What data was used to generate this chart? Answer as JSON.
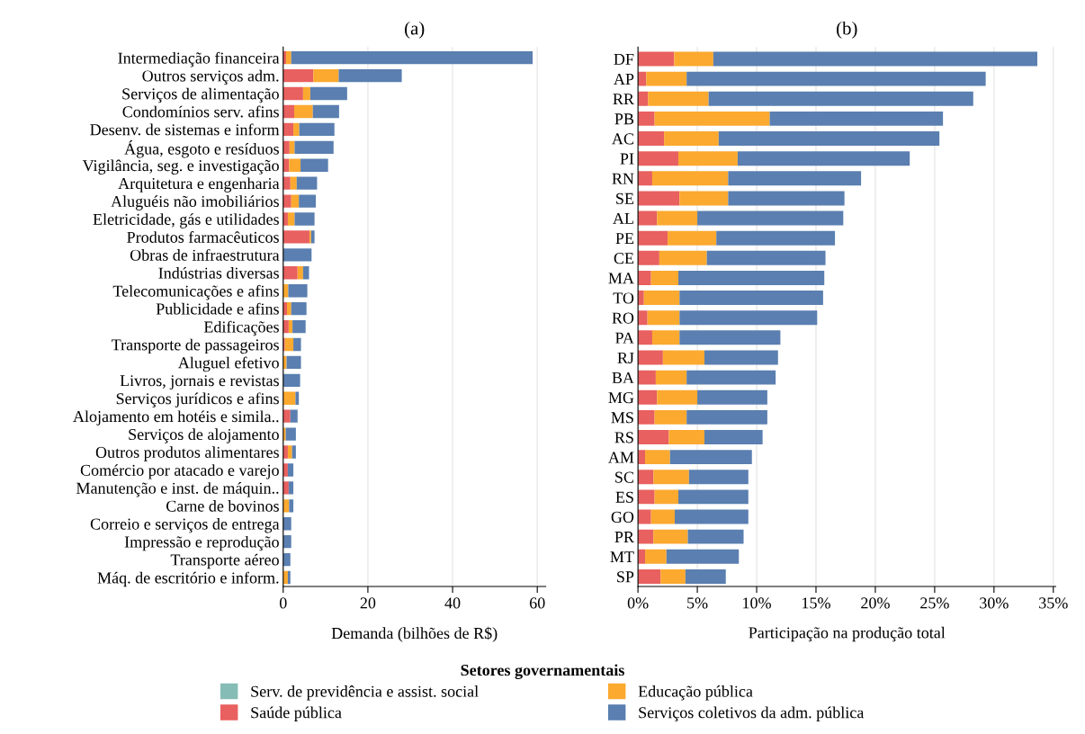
{
  "chart_data": [
    {
      "type": "bar",
      "orientation": "horizontal",
      "stacked": true,
      "title": "(a)",
      "xlabel": "Demanda (bilhões de R$)",
      "grid": "x",
      "legend": "bottom",
      "legend_title": "Setores governamentais",
      "categories": [
        "Intermediação financeira",
        "Outros serviços adm.",
        "Serviços de alimentação",
        "Condomínios serv. afins",
        "Desenv. de sistemas e inform",
        "Água, esgoto e resíduos",
        "Vigilância, seg. e investigação",
        "Arquitetura e engenharia",
        "Aluguéis não imobiliários",
        "Eletricidade, gás e utilidades",
        "Produtos farmacêuticos",
        "Obras de infraestrutura",
        "Indústrias diversas",
        "Telecomunicações e afins",
        "Publicidade e afins",
        "Edificações",
        "Transporte de passageiros",
        "Aluguel efetivo",
        "Livros, jornais e revistas",
        "Serviços jurídicos e afins",
        "Alojamento em hotéis e simila..",
        "Serviços de alojamento",
        "Outros produtos alimentares",
        "Comércio por atacado e varejo",
        "Manutenção e inst. de máquin..",
        "Carne de bovinos",
        "Correio e serviços de entrega",
        "Impressão e reprodução",
        "Transporte aéreo",
        "Máq. de escritório e inform."
      ],
      "xlim": [
        0,
        62
      ],
      "xticks": [
        0,
        20,
        40,
        60
      ],
      "series": [
        {
          "name": "Serv. de previdência e assist. social",
          "color": "#86bcb6",
          "values": [
            0,
            0,
            0,
            0,
            0,
            0,
            0,
            0,
            0,
            0,
            0,
            0,
            0,
            0,
            0,
            0,
            0,
            0,
            0,
            0,
            0,
            0,
            0,
            0,
            0,
            0,
            0,
            0,
            0,
            0
          ]
        },
        {
          "name": "Saúde pública",
          "color": "#e8605f",
          "values": [
            0.7,
            7.1,
            4.7,
            2.6,
            2.4,
            1.5,
            1.4,
            1.7,
            1.9,
            1.1,
            6.2,
            0,
            3.4,
            0,
            0.9,
            1.3,
            0.4,
            0,
            0,
            0,
            1.7,
            0,
            1.1,
            1.1,
            1.3,
            0,
            0,
            0,
            0,
            0
          ]
        },
        {
          "name": "Educação pública",
          "color": "#fba92f",
          "values": [
            1.2,
            6.0,
            1.7,
            4.4,
            1.4,
            1.2,
            2.7,
            1.5,
            1.8,
            1.6,
            0.4,
            0,
            1.3,
            1.2,
            1.0,
            0.9,
            2.0,
            0.8,
            0,
            2.9,
            0,
            0.6,
            1.0,
            0,
            0,
            1.4,
            0,
            0,
            0,
            1.1
          ]
        },
        {
          "name": "Serviços coletivos da adm. pública",
          "color": "#5a7fb0",
          "values": [
            57.0,
            14.9,
            8.7,
            6.2,
            8.3,
            9.2,
            6.5,
            4.8,
            4.0,
            4.7,
            0.8,
            6.7,
            1.4,
            4.5,
            3.6,
            3.1,
            1.8,
            3.4,
            4.0,
            0.8,
            1.7,
            2.4,
            0.9,
            1.3,
            1.1,
            1.0,
            1.9,
            1.9,
            1.7,
            0.6
          ]
        }
      ]
    },
    {
      "type": "bar",
      "orientation": "horizontal",
      "stacked": true,
      "title": "(b)",
      "xlabel": "Participação na produção total",
      "grid": "x",
      "categories": [
        "DF",
        "AP",
        "RR",
        "PB",
        "AC",
        "PI",
        "RN",
        "SE",
        "AL",
        "PE",
        "CE",
        "MA",
        "TO",
        "RO",
        "PA",
        "RJ",
        "BA",
        "MG",
        "MS",
        "RS",
        "AM",
        "SC",
        "ES",
        "GO",
        "PR",
        "MT",
        "SP"
      ],
      "xlim": [
        0,
        35.2
      ],
      "xticks": [
        {
          "value": 0,
          "label": "0%"
        },
        {
          "value": 5,
          "label": "5%"
        },
        {
          "value": 10,
          "label": "10%"
        },
        {
          "value": 15,
          "label": "15%"
        },
        {
          "value": 20,
          "label": "20%"
        },
        {
          "value": 25,
          "label": "25%"
        },
        {
          "value": 30,
          "label": "30%"
        },
        {
          "value": 35,
          "label": "35%"
        }
      ],
      "series": [
        {
          "color": "#86bcb6",
          "values": [
            0,
            0,
            0,
            0,
            0,
            0,
            0,
            0,
            0,
            0,
            0,
            0,
            0,
            0,
            0,
            0,
            0,
            0,
            0,
            0,
            0,
            0,
            0,
            0,
            0,
            0,
            0
          ]
        },
        {
          "color": "#e8605f",
          "values": [
            3.05,
            0.7,
            0.85,
            1.4,
            2.2,
            3.4,
            1.2,
            3.5,
            1.6,
            2.5,
            1.8,
            1.1,
            0.5,
            0.8,
            1.2,
            2.1,
            1.5,
            1.6,
            1.4,
            2.6,
            0.6,
            1.3,
            1.4,
            1.1,
            1.3,
            0.6,
            1.9
          ]
        },
        {
          "color": "#fba92f",
          "values": [
            3.3,
            3.4,
            5.1,
            9.7,
            4.6,
            5.0,
            6.4,
            4.1,
            3.4,
            4.1,
            4.0,
            2.3,
            3.0,
            2.7,
            2.3,
            3.5,
            2.6,
            3.4,
            2.7,
            3.0,
            2.1,
            3.0,
            2.0,
            2.0,
            2.9,
            1.8,
            2.1
          ]
        },
        {
          "color": "#5a7fb0",
          "values": [
            27.3,
            25.2,
            22.3,
            14.6,
            18.6,
            14.5,
            11.2,
            9.8,
            12.3,
            10.0,
            10.0,
            12.3,
            12.1,
            11.6,
            8.5,
            6.2,
            7.5,
            5.9,
            6.8,
            4.9,
            6.9,
            5.0,
            5.9,
            6.2,
            4.7,
            6.1,
            3.4
          ]
        }
      ]
    }
  ]
}
